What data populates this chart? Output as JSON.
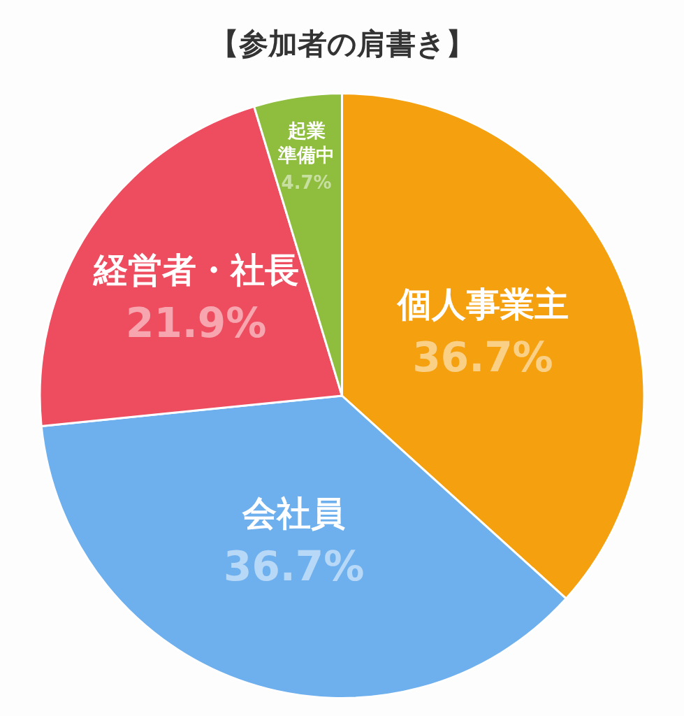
{
  "chart_data": {
    "type": "pie",
    "title": "【参加者の肩書き】",
    "categories": [
      "個人事業主",
      "会社員",
      "経営者・社長",
      "起業準備中"
    ],
    "values": [
      36.7,
      36.7,
      21.9,
      4.7
    ],
    "colors": [
      "#f5a00e",
      "#6eb0ee",
      "#ee4d5f",
      "#8fbe3e"
    ],
    "value_labels": [
      "36.7%",
      "36.7%",
      "21.9%",
      "4.7%"
    ]
  }
}
